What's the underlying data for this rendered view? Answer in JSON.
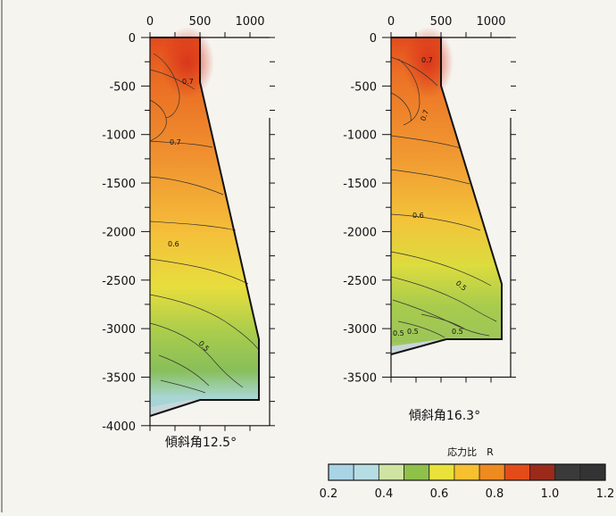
{
  "panels": [
    {
      "caption": "傾斜角12.5°",
      "x_ticks": [
        "0",
        "500",
        "1000"
      ],
      "y_ticks": [
        "0",
        "-500",
        "-1000",
        "-1500",
        "-2000",
        "-2500",
        "-3000",
        "-3500",
        "-4000"
      ],
      "contour_labels": [
        "0.7",
        "0.7",
        "0.6",
        "0.5"
      ]
    },
    {
      "caption": "傾斜角16.3°",
      "x_ticks": [
        "0",
        "500",
        "1000"
      ],
      "y_ticks": [
        "0",
        "-500",
        "-1000",
        "-1500",
        "-2000",
        "-2500",
        "-3000",
        "-3500"
      ],
      "contour_labels": [
        "0.7",
        "0.7",
        "0.6",
        "0.5",
        "0.5",
        "0.5",
        "0.5"
      ]
    }
  ],
  "colorbar": {
    "title": "応力比　R",
    "tick_labels": [
      "0.2",
      "0.4",
      "0.6",
      "0.8",
      "1.0",
      "1.2"
    ],
    "colors": [
      "#a9d4e6",
      "#b6dde4",
      "#cfe4a2",
      "#8fc04a",
      "#e8e23a",
      "#f6c02e",
      "#ef8a1f",
      "#e34c1a",
      "#9b2a1a",
      "#3a3a3a",
      "#333333"
    ]
  }
}
